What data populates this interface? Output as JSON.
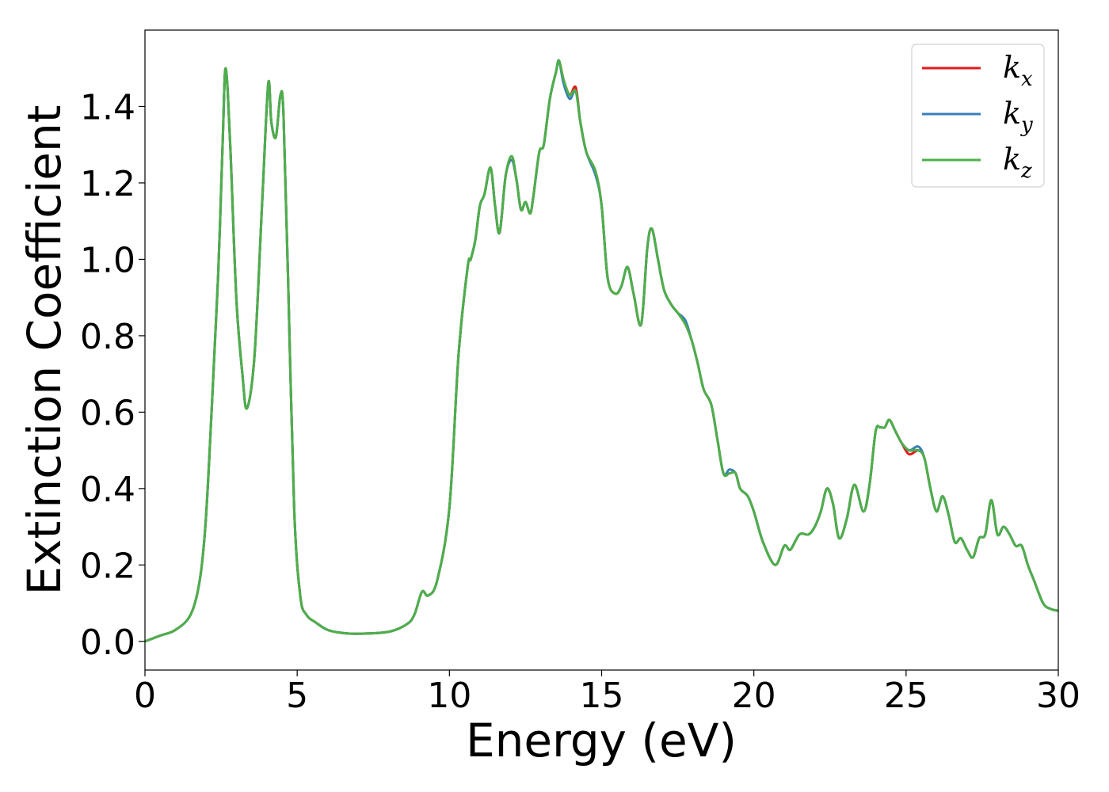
{
  "chart_data": {
    "type": "line",
    "title": "",
    "xlabel": "Energy (eV)",
    "ylabel": "Extinction Coefficient",
    "xlim": [
      0,
      30
    ],
    "ylim": [
      -0.075,
      1.6
    ],
    "xticks": [
      0,
      5,
      10,
      15,
      20,
      25,
      30
    ],
    "xtick_labels": [
      "0",
      "5",
      "10",
      "15",
      "20",
      "25",
      "30"
    ],
    "yticks": [
      0.0,
      0.2,
      0.4,
      0.6,
      0.8,
      1.0,
      1.2,
      1.4
    ],
    "ytick_labels": [
      "0.0",
      "0.2",
      "0.4",
      "0.6",
      "0.8",
      "1.0",
      "1.2",
      "1.4"
    ],
    "grid": false,
    "legend_position": "top-right",
    "series": [
      {
        "name": "kx",
        "label_base": "k",
        "label_sub": "x",
        "color": "#e41a1c",
        "x": [
          0,
          0.5,
          1.0,
          1.5,
          1.8,
          2.0,
          2.2,
          2.4,
          2.55,
          2.65,
          2.8,
          3.0,
          3.2,
          3.35,
          3.6,
          3.85,
          4.05,
          4.15,
          4.3,
          4.45,
          4.55,
          4.7,
          4.9,
          5.1,
          5.3,
          5.6,
          6.0,
          6.5,
          7.0,
          8.0,
          8.6,
          8.85,
          9.1,
          9.3,
          9.6,
          10.0,
          10.3,
          10.6,
          10.7,
          10.85,
          11.0,
          11.15,
          11.35,
          11.5,
          11.65,
          11.85,
          12.05,
          12.2,
          12.35,
          12.5,
          12.65,
          12.75,
          12.95,
          13.1,
          13.3,
          13.5,
          13.6,
          13.75,
          13.95,
          14.15,
          14.3,
          14.5,
          14.8,
          15.0,
          15.2,
          15.45,
          15.65,
          15.85,
          16.05,
          16.3,
          16.5,
          16.65,
          16.85,
          17.05,
          17.3,
          17.5,
          17.75,
          17.95,
          18.15,
          18.35,
          18.6,
          18.8,
          19.0,
          19.2,
          19.4,
          19.55,
          19.8,
          20.0,
          20.3,
          20.7,
          21.0,
          21.2,
          21.5,
          21.8,
          22.0,
          22.2,
          22.4,
          22.6,
          22.8,
          23.05,
          23.3,
          23.6,
          23.8,
          24.0,
          24.15,
          24.3,
          24.45,
          24.65,
          24.85,
          25.1,
          25.4,
          25.6,
          25.8,
          26.0,
          26.2,
          26.4,
          26.6,
          26.8,
          27.0,
          27.2,
          27.4,
          27.6,
          27.8,
          28.0,
          28.2,
          28.4,
          28.6,
          28.8,
          29.0,
          29.2,
          29.5,
          29.75,
          30.0
        ],
        "y": [
          0.0,
          0.015,
          0.03,
          0.07,
          0.16,
          0.32,
          0.62,
          0.95,
          1.3,
          1.5,
          1.3,
          0.9,
          0.7,
          0.61,
          0.75,
          1.15,
          1.46,
          1.36,
          1.32,
          1.43,
          1.38,
          0.95,
          0.35,
          0.12,
          0.07,
          0.05,
          0.03,
          0.022,
          0.02,
          0.025,
          0.045,
          0.07,
          0.13,
          0.12,
          0.16,
          0.35,
          0.75,
          0.98,
          1.0,
          1.05,
          1.14,
          1.17,
          1.24,
          1.14,
          1.07,
          1.22,
          1.26,
          1.21,
          1.13,
          1.15,
          1.12,
          1.16,
          1.28,
          1.3,
          1.42,
          1.49,
          1.52,
          1.47,
          1.43,
          1.45,
          1.36,
          1.28,
          1.23,
          1.14,
          0.95,
          0.91,
          0.93,
          0.98,
          0.91,
          0.83,
          1.03,
          1.08,
          1.0,
          0.92,
          0.88,
          0.86,
          0.83,
          0.79,
          0.73,
          0.66,
          0.62,
          0.53,
          0.44,
          0.44,
          0.44,
          0.4,
          0.38,
          0.34,
          0.26,
          0.2,
          0.25,
          0.24,
          0.28,
          0.28,
          0.3,
          0.34,
          0.4,
          0.36,
          0.27,
          0.32,
          0.41,
          0.34,
          0.41,
          0.55,
          0.56,
          0.56,
          0.58,
          0.55,
          0.52,
          0.49,
          0.5,
          0.48,
          0.4,
          0.34,
          0.38,
          0.33,
          0.26,
          0.27,
          0.24,
          0.22,
          0.27,
          0.28,
          0.37,
          0.28,
          0.3,
          0.28,
          0.25,
          0.25,
          0.2,
          0.16,
          0.1,
          0.085,
          0.08
        ]
      },
      {
        "name": "ky",
        "label_base": "k",
        "label_sub": "y",
        "color": "#377eb8",
        "x": [
          0,
          0.5,
          1.0,
          1.5,
          1.8,
          2.0,
          2.2,
          2.4,
          2.55,
          2.65,
          2.8,
          3.0,
          3.2,
          3.35,
          3.6,
          3.85,
          4.05,
          4.15,
          4.3,
          4.45,
          4.55,
          4.7,
          4.9,
          5.1,
          5.3,
          5.6,
          6.0,
          6.5,
          7.0,
          8.0,
          8.6,
          8.85,
          9.1,
          9.3,
          9.6,
          10.0,
          10.3,
          10.6,
          10.7,
          10.85,
          11.0,
          11.15,
          11.35,
          11.5,
          11.65,
          11.85,
          12.05,
          12.2,
          12.35,
          12.5,
          12.65,
          12.75,
          12.95,
          13.1,
          13.3,
          13.5,
          13.6,
          13.75,
          13.95,
          14.15,
          14.3,
          14.5,
          14.8,
          15.0,
          15.2,
          15.45,
          15.65,
          15.85,
          16.05,
          16.3,
          16.5,
          16.65,
          16.85,
          17.05,
          17.3,
          17.5,
          17.75,
          17.95,
          18.15,
          18.35,
          18.6,
          18.8,
          19.0,
          19.2,
          19.4,
          19.55,
          19.8,
          20.0,
          20.3,
          20.7,
          21.0,
          21.2,
          21.5,
          21.8,
          22.0,
          22.2,
          22.4,
          22.6,
          22.8,
          23.05,
          23.3,
          23.6,
          23.8,
          24.0,
          24.15,
          24.3,
          24.45,
          24.65,
          24.85,
          25.1,
          25.4,
          25.6,
          25.8,
          26.0,
          26.2,
          26.4,
          26.6,
          26.8,
          27.0,
          27.2,
          27.4,
          27.6,
          27.8,
          28.0,
          28.2,
          28.4,
          28.6,
          28.8,
          29.0,
          29.2,
          29.5,
          29.75,
          30.0
        ],
        "y": [
          0.0,
          0.015,
          0.03,
          0.07,
          0.16,
          0.32,
          0.62,
          0.95,
          1.3,
          1.5,
          1.3,
          0.9,
          0.7,
          0.61,
          0.75,
          1.15,
          1.46,
          1.36,
          1.32,
          1.43,
          1.38,
          0.95,
          0.35,
          0.12,
          0.07,
          0.05,
          0.03,
          0.022,
          0.02,
          0.025,
          0.045,
          0.07,
          0.13,
          0.12,
          0.16,
          0.35,
          0.75,
          0.98,
          1.0,
          1.05,
          1.14,
          1.17,
          1.24,
          1.14,
          1.07,
          1.22,
          1.26,
          1.21,
          1.13,
          1.15,
          1.12,
          1.16,
          1.28,
          1.3,
          1.42,
          1.49,
          1.52,
          1.46,
          1.42,
          1.44,
          1.36,
          1.28,
          1.22,
          1.14,
          0.95,
          0.91,
          0.93,
          0.98,
          0.91,
          0.83,
          1.03,
          1.08,
          1.0,
          0.92,
          0.88,
          0.86,
          0.84,
          0.79,
          0.73,
          0.66,
          0.62,
          0.53,
          0.44,
          0.45,
          0.44,
          0.4,
          0.38,
          0.34,
          0.26,
          0.2,
          0.25,
          0.24,
          0.28,
          0.28,
          0.3,
          0.34,
          0.4,
          0.36,
          0.27,
          0.32,
          0.41,
          0.34,
          0.41,
          0.55,
          0.56,
          0.56,
          0.58,
          0.55,
          0.52,
          0.5,
          0.51,
          0.48,
          0.4,
          0.34,
          0.38,
          0.33,
          0.26,
          0.27,
          0.24,
          0.22,
          0.27,
          0.28,
          0.37,
          0.28,
          0.3,
          0.28,
          0.25,
          0.25,
          0.2,
          0.16,
          0.1,
          0.085,
          0.08
        ]
      },
      {
        "name": "kz",
        "label_base": "k",
        "label_sub": "z",
        "color": "#4daf4a",
        "x": [
          0,
          0.5,
          1.0,
          1.5,
          1.8,
          2.0,
          2.2,
          2.4,
          2.55,
          2.65,
          2.8,
          3.0,
          3.2,
          3.35,
          3.6,
          3.85,
          4.05,
          4.15,
          4.3,
          4.45,
          4.55,
          4.7,
          4.9,
          5.1,
          5.3,
          5.6,
          6.0,
          6.5,
          7.0,
          8.0,
          8.6,
          8.85,
          9.1,
          9.3,
          9.6,
          10.0,
          10.3,
          10.6,
          10.7,
          10.85,
          11.0,
          11.15,
          11.35,
          11.5,
          11.65,
          11.85,
          12.05,
          12.2,
          12.35,
          12.5,
          12.65,
          12.75,
          12.95,
          13.1,
          13.3,
          13.5,
          13.6,
          13.75,
          13.95,
          14.15,
          14.3,
          14.5,
          14.8,
          15.0,
          15.2,
          15.45,
          15.65,
          15.85,
          16.05,
          16.3,
          16.5,
          16.65,
          16.85,
          17.05,
          17.3,
          17.5,
          17.75,
          17.95,
          18.15,
          18.35,
          18.6,
          18.8,
          19.0,
          19.2,
          19.4,
          19.55,
          19.8,
          20.0,
          20.3,
          20.7,
          21.0,
          21.2,
          21.5,
          21.8,
          22.0,
          22.2,
          22.4,
          22.6,
          22.8,
          23.05,
          23.3,
          23.6,
          23.8,
          24.0,
          24.15,
          24.3,
          24.45,
          24.65,
          24.85,
          25.1,
          25.4,
          25.6,
          25.8,
          26.0,
          26.2,
          26.4,
          26.6,
          26.8,
          27.0,
          27.2,
          27.4,
          27.6,
          27.8,
          28.0,
          28.2,
          28.4,
          28.6,
          28.8,
          29.0,
          29.2,
          29.5,
          29.75,
          30.0
        ],
        "y": [
          0.0,
          0.015,
          0.03,
          0.07,
          0.16,
          0.32,
          0.62,
          0.95,
          1.3,
          1.5,
          1.3,
          0.9,
          0.7,
          0.61,
          0.75,
          1.15,
          1.46,
          1.36,
          1.32,
          1.43,
          1.38,
          0.95,
          0.35,
          0.12,
          0.07,
          0.05,
          0.03,
          0.022,
          0.02,
          0.025,
          0.045,
          0.07,
          0.13,
          0.12,
          0.16,
          0.35,
          0.75,
          0.98,
          1.0,
          1.05,
          1.14,
          1.17,
          1.24,
          1.14,
          1.07,
          1.22,
          1.27,
          1.21,
          1.13,
          1.15,
          1.12,
          1.16,
          1.28,
          1.3,
          1.42,
          1.49,
          1.52,
          1.47,
          1.43,
          1.44,
          1.36,
          1.28,
          1.23,
          1.14,
          0.95,
          0.91,
          0.93,
          0.98,
          0.91,
          0.83,
          1.03,
          1.08,
          1.0,
          0.92,
          0.88,
          0.86,
          0.83,
          0.79,
          0.73,
          0.66,
          0.62,
          0.53,
          0.44,
          0.44,
          0.44,
          0.4,
          0.38,
          0.34,
          0.26,
          0.2,
          0.25,
          0.24,
          0.28,
          0.28,
          0.3,
          0.34,
          0.4,
          0.36,
          0.27,
          0.32,
          0.41,
          0.34,
          0.41,
          0.55,
          0.56,
          0.56,
          0.58,
          0.55,
          0.52,
          0.5,
          0.5,
          0.48,
          0.4,
          0.34,
          0.38,
          0.33,
          0.26,
          0.27,
          0.24,
          0.22,
          0.27,
          0.28,
          0.37,
          0.28,
          0.3,
          0.28,
          0.25,
          0.25,
          0.2,
          0.16,
          0.1,
          0.085,
          0.08
        ]
      }
    ]
  }
}
